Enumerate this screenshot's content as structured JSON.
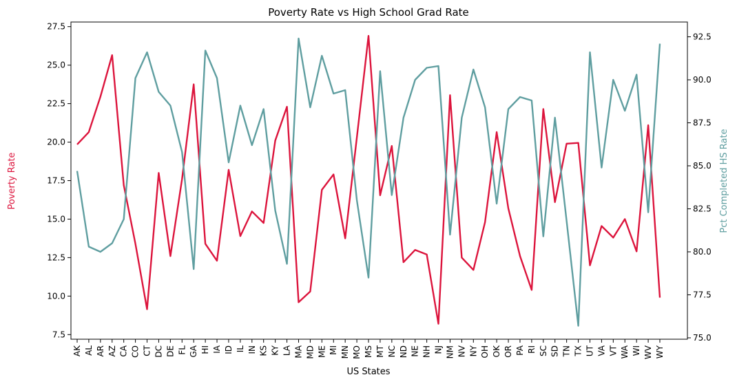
{
  "chart_data": {
    "type": "line",
    "title": "Poverty Rate vs High School Grad Rate",
    "xlabel": "US States",
    "ylabel": "Poverty Rate",
    "y2label": "Pct Completed HS Rate",
    "ylim": [
      7.2,
      27.8
    ],
    "y2lim": [
      74.92,
      93.36
    ],
    "yticks": [
      "7.5",
      "10.0",
      "12.5",
      "15.0",
      "17.5",
      "20.0",
      "22.5",
      "25.0",
      "27.5"
    ],
    "y2ticks": [
      "75.0",
      "77.5",
      "80.0",
      "82.5",
      "85.0",
      "87.5",
      "90.0",
      "92.5"
    ],
    "grid": false,
    "legend": "none",
    "categories": [
      "AK",
      "AL",
      "AR",
      "AZ",
      "CA",
      "CO",
      "CT",
      "DC",
      "DE",
      "FL",
      "GA",
      "HI",
      "IA",
      "ID",
      "IL",
      "IN",
      "KS",
      "KY",
      "LA",
      "MA",
      "MD",
      "ME",
      "MI",
      "MN",
      "MO",
      "MS",
      "MT",
      "NC",
      "ND",
      "NE",
      "NH",
      "NJ",
      "NM",
      "NV",
      "NY",
      "OH",
      "OK",
      "OR",
      "PA",
      "RI",
      "SC",
      "SD",
      "TN",
      "TX",
      "UT",
      "VA",
      "VT",
      "WA",
      "WI",
      "WV",
      "WY"
    ],
    "series": [
      {
        "name": "Poverty Rate",
        "axis": "left",
        "color": "#dc143c",
        "values": [
          19.85,
          20.65,
          22.95,
          25.65,
          17.2,
          13.4,
          9.15,
          18.0,
          12.6,
          17.6,
          23.75,
          13.4,
          12.3,
          18.2,
          13.9,
          15.5,
          14.75,
          20.1,
          22.3,
          9.6,
          10.3,
          16.9,
          17.9,
          13.75,
          20.3,
          26.9,
          16.55,
          19.75,
          12.2,
          13.0,
          12.7,
          8.2,
          23.05,
          12.5,
          11.7,
          14.8,
          20.65,
          15.7,
          12.6,
          10.4,
          22.15,
          16.1,
          19.9,
          19.95,
          12.0,
          14.55,
          13.8,
          15.0,
          12.9,
          21.1,
          9.9
        ]
      },
      {
        "name": "Pct Completed HS Rate",
        "axis": "right",
        "color": "#5f9ea0",
        "values": [
          84.7,
          80.3,
          80.0,
          80.5,
          81.9,
          90.1,
          91.6,
          89.3,
          88.5,
          85.8,
          79.0,
          91.7,
          90.1,
          85.2,
          88.5,
          86.2,
          88.3,
          82.4,
          79.3,
          92.4,
          88.4,
          91.4,
          89.2,
          89.4,
          83.0,
          78.5,
          90.5,
          83.3,
          87.8,
          90.0,
          90.7,
          90.8,
          81.0,
          87.8,
          90.6,
          88.4,
          82.8,
          88.3,
          89.0,
          88.8,
          80.9,
          87.8,
          81.8,
          75.7,
          91.6,
          84.9,
          90.0,
          88.2,
          90.3,
          82.3,
          92.1
        ]
      }
    ]
  }
}
